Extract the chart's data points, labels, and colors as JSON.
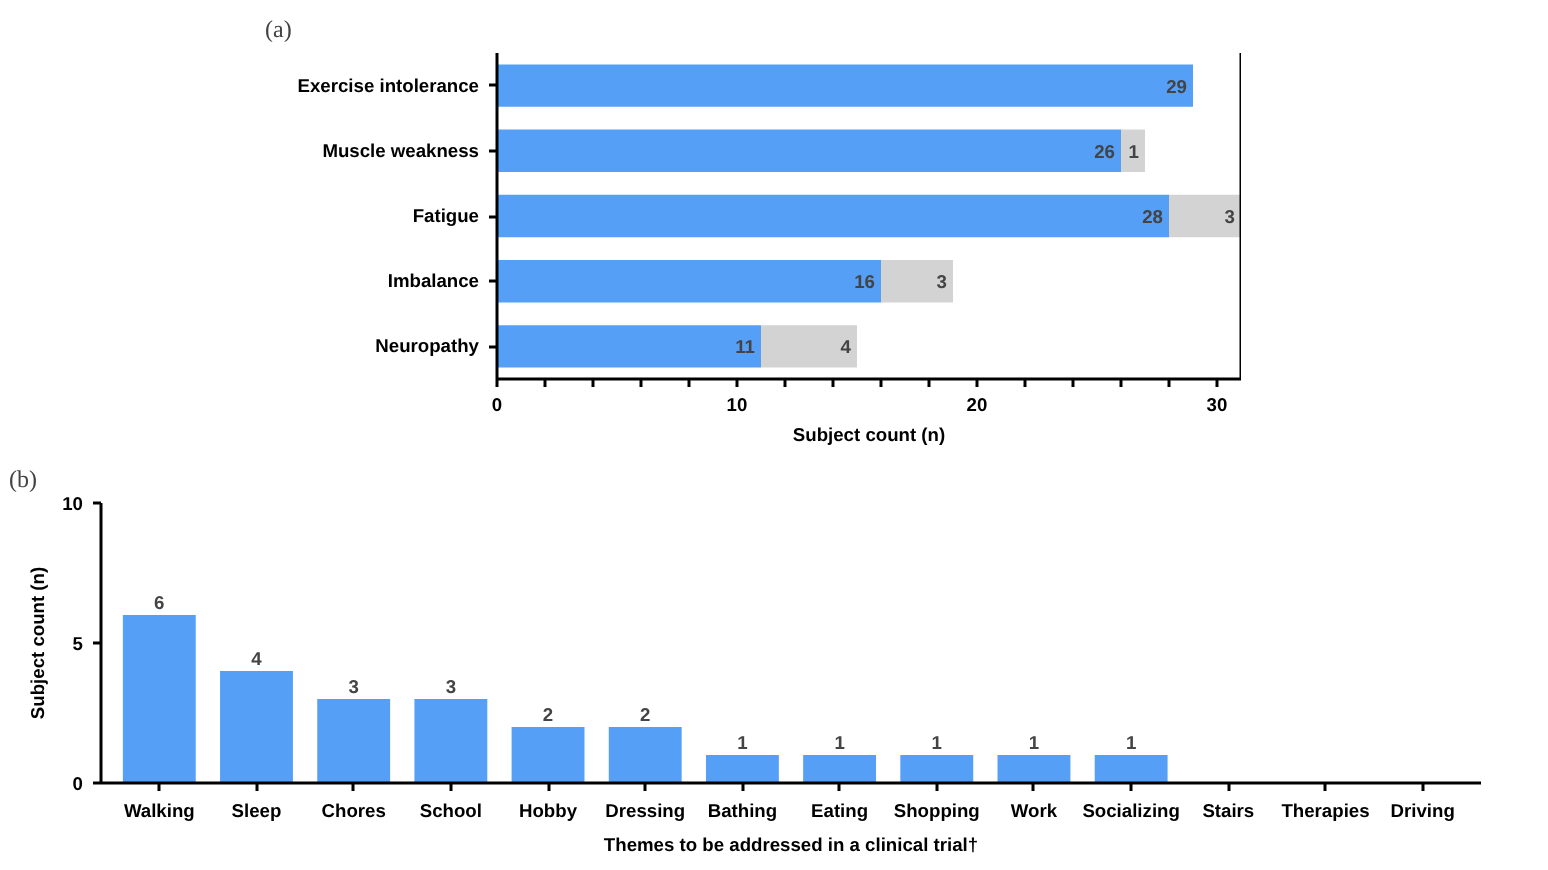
{
  "chart_data": [
    {
      "type": "bar",
      "title": "(a)",
      "orientation": "horizontal",
      "stacked": true,
      "xlabel": "Subject count (n)",
      "categories": [
        "Exercise intolerance",
        "Muscle weakness",
        "Fatigue",
        "Imbalance",
        "Neuropathy"
      ],
      "series": [
        {
          "color": "#559ff7",
          "values": [
            29,
            26,
            28,
            16,
            11
          ],
          "value_labels": [
            "29",
            "26",
            "28",
            "16",
            "11"
          ]
        },
        {
          "color": "#d3d3d3",
          "values": [
            0,
            1,
            3,
            3,
            4
          ],
          "value_labels": [
            null,
            "1",
            "3",
            "3",
            "4"
          ]
        }
      ],
      "xlim": [
        0,
        31
      ],
      "xticks": [
        0,
        {
          "value": 2,
          "label": null
        },
        {
          "value": 4,
          "label": null
        },
        {
          "value": 6,
          "label": null
        },
        {
          "value": 8,
          "label": null
        },
        10,
        {
          "value": 12,
          "label": null
        },
        {
          "value": 14,
          "label": null
        },
        {
          "value": 16,
          "label": null
        },
        {
          "value": 18,
          "label": null
        },
        20,
        {
          "value": 22,
          "label": null
        },
        {
          "value": 24,
          "label": null
        },
        {
          "value": 26,
          "label": null
        },
        {
          "value": 28,
          "label": null
        },
        30
      ],
      "grid": false
    },
    {
      "type": "bar",
      "title": "(b)",
      "xlabel": "Themes to be addressed in a clinical trial†",
      "ylabel": "Subject count (n)",
      "categories": [
        "Walking",
        "Sleep",
        "Chores",
        "School",
        "Hobby",
        "Dressing",
        "Bathing",
        "Eating",
        "Shopping",
        "Work",
        "Socializing",
        "Stairs",
        "Therapies",
        "Driving"
      ],
      "series": [
        {
          "color": "#559ff7",
          "values": [
            6,
            4,
            3,
            3,
            2,
            2,
            1,
            1,
            1,
            1,
            1,
            0,
            0,
            0
          ],
          "value_labels": [
            "6",
            "4",
            "3",
            "3",
            "2",
            "2",
            "1",
            "1",
            "1",
            "1",
            "1",
            null,
            null,
            null
          ]
        }
      ],
      "ylim": [
        0,
        10
      ],
      "yticks": [
        0,
        5,
        10
      ],
      "grid": false
    }
  ]
}
